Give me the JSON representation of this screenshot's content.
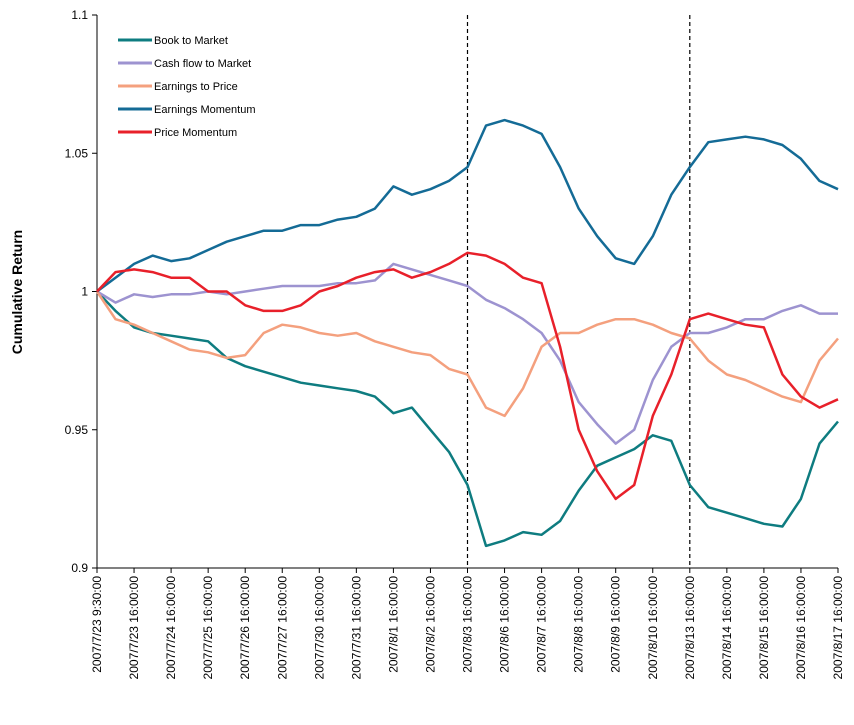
{
  "chart_data": {
    "type": "line",
    "y_label": "Cumulative Return",
    "categories": [
      "2007/7/23 9:30:00",
      null,
      "2007/7/23 16:00:00",
      null,
      "2007/7/24 16:00:00",
      null,
      "2007/7/25 16:00:00",
      null,
      "2007/7/26 16:00:00",
      null,
      "2007/7/27 16:00:00",
      null,
      "2007/7/30 16:00:00",
      null,
      "2007/7/31 16:00:00",
      null,
      "2007/8/1 16:00:00",
      null,
      "2007/8/2 16:00:00",
      null,
      "2007/8/3 16:00:00",
      null,
      "2007/8/6 16:00:00",
      null,
      "2007/8/7 16:00:00",
      null,
      "2007/8/8 16:00:00",
      null,
      "2007/8/9 16:00:00",
      null,
      "2007/8/10 16:00:00",
      null,
      "2007/8/13 16:00:00",
      null,
      "2007/8/14 16:00:00",
      null,
      "2007/8/15 16:00:00",
      null,
      "2007/8/16 16:00:00",
      null,
      "2007/8/17 16:00:00"
    ],
    "series": [
      {
        "name": "Book to Market",
        "color": "#0e7c80",
        "values": [
          1.0,
          0.993,
          0.987,
          0.985,
          0.984,
          0.983,
          0.982,
          0.976,
          0.973,
          0.971,
          0.969,
          0.967,
          0.966,
          0.965,
          0.964,
          0.962,
          0.956,
          0.958,
          0.95,
          0.942,
          0.93,
          0.908,
          0.91,
          0.913,
          0.912,
          0.917,
          0.928,
          0.937,
          0.94,
          0.943,
          0.948,
          0.946,
          0.93,
          0.922,
          0.92,
          0.918,
          0.916,
          0.915,
          0.925,
          0.945,
          0.953
        ]
      },
      {
        "name": "Cash flow to Market",
        "color": "#9d93d0",
        "values": [
          1.0,
          0.996,
          0.999,
          0.998,
          0.999,
          0.999,
          1.0,
          0.999,
          1.0,
          1.001,
          1.002,
          1.002,
          1.002,
          1.003,
          1.003,
          1.004,
          1.01,
          1.008,
          1.006,
          1.004,
          1.002,
          0.997,
          0.994,
          0.99,
          0.985,
          0.975,
          0.96,
          0.952,
          0.945,
          0.95,
          0.968,
          0.98,
          0.985,
          0.985,
          0.987,
          0.99,
          0.99,
          0.993,
          0.995,
          0.992,
          0.992
        ]
      },
      {
        "name": "Earnings to Price",
        "color": "#f4a07e",
        "values": [
          1.0,
          0.99,
          0.988,
          0.985,
          0.982,
          0.979,
          0.978,
          0.976,
          0.977,
          0.985,
          0.988,
          0.987,
          0.985,
          0.984,
          0.985,
          0.982,
          0.98,
          0.978,
          0.977,
          0.972,
          0.97,
          0.958,
          0.955,
          0.965,
          0.98,
          0.985,
          0.985,
          0.988,
          0.99,
          0.99,
          0.988,
          0.985,
          0.983,
          0.975,
          0.97,
          0.968,
          0.965,
          0.962,
          0.96,
          0.975,
          0.983
        ]
      },
      {
        "name": "Earnings Momentum",
        "color": "#146b96",
        "values": [
          1.0,
          1.005,
          1.01,
          1.013,
          1.011,
          1.012,
          1.015,
          1.018,
          1.02,
          1.022,
          1.022,
          1.024,
          1.024,
          1.026,
          1.027,
          1.03,
          1.038,
          1.035,
          1.037,
          1.04,
          1.045,
          1.06,
          1.062,
          1.06,
          1.057,
          1.045,
          1.03,
          1.02,
          1.012,
          1.01,
          1.02,
          1.035,
          1.045,
          1.054,
          1.055,
          1.056,
          1.055,
          1.053,
          1.048,
          1.04,
          1.037
        ]
      },
      {
        "name": "Price Momentum",
        "color": "#e8202a",
        "values": [
          1.0,
          1.007,
          1.008,
          1.007,
          1.005,
          1.005,
          1.0,
          1.0,
          0.995,
          0.993,
          0.993,
          0.995,
          1.0,
          1.002,
          1.005,
          1.007,
          1.008,
          1.005,
          1.007,
          1.01,
          1.014,
          1.013,
          1.01,
          1.005,
          1.003,
          0.98,
          0.95,
          0.935,
          0.925,
          0.93,
          0.955,
          0.97,
          0.99,
          0.992,
          0.99,
          0.988,
          0.987,
          0.97,
          0.962,
          0.958,
          0.961
        ]
      }
    ],
    "ylim": [
      0.9,
      1.1
    ],
    "yticks": [
      0.9,
      0.95,
      1,
      1.05,
      1.1
    ],
    "dashed_lines_at_index": [
      20,
      32
    ],
    "legend": "top-left",
    "grid": false
  }
}
